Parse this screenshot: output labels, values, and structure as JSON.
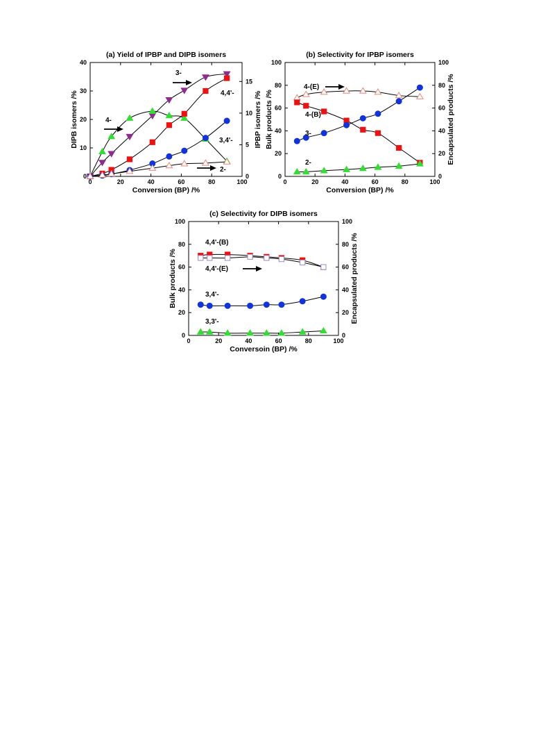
{
  "chart_data": [
    {
      "id": "a",
      "type": "scatter",
      "title": "(a) Yield of IPBP and DIPB isomers",
      "xlabel": "Conversion (BP) /%",
      "ylabel_left": "DIPB isomers /%",
      "ylabel_right": "IPBP isomers /%",
      "xlim": [
        0,
        100
      ],
      "ylim_left": [
        0,
        40
      ],
      "ylim_right": [
        0,
        18
      ],
      "xticks": [
        "0",
        "20",
        "40",
        "60",
        "80",
        "100"
      ],
      "yticks_left": [
        "0",
        "10",
        "20",
        "30",
        "40"
      ],
      "yticks_right": [
        "0",
        "5",
        "10",
        "15"
      ],
      "series": [
        {
          "name": "3-",
          "axis": "right",
          "color": "#8e2b8e",
          "marker": "tri-down",
          "x": [
            0,
            8,
            14,
            26,
            41,
            52,
            62,
            76,
            90
          ],
          "y": [
            0,
            2.2,
            3.6,
            6.3,
            9.6,
            12.1,
            13.6,
            15.7,
            16.2
          ]
        },
        {
          "name": "4-",
          "axis": "right",
          "color": "#33dd33",
          "marker": "tri-up",
          "x": [
            0,
            8,
            14,
            26,
            41,
            52,
            62,
            76,
            90
          ],
          "y": [
            0,
            3.9,
            6.3,
            9.2,
            10.3,
            9.6,
            9.2,
            5.9,
            2.4
          ]
        },
        {
          "name": "4,4'-",
          "axis": "left",
          "color": "#ee1111",
          "marker": "square",
          "x": [
            0,
            8,
            14,
            26,
            41,
            52,
            62,
            76,
            90
          ],
          "y": [
            0,
            1,
            2.3,
            6,
            12,
            18,
            22,
            30,
            34.5
          ]
        },
        {
          "name": "3,4'-",
          "axis": "left",
          "color": "#1133dd",
          "marker": "circle",
          "x": [
            0,
            8,
            14,
            26,
            41,
            52,
            62,
            76,
            90
          ],
          "y": [
            0,
            0.3,
            0.8,
            2.2,
            4.5,
            7,
            9,
            13.5,
            19.5
          ]
        },
        {
          "name": "2-",
          "axis": "right",
          "color": "#e88a7a",
          "marker": "tri-up-open",
          "x": [
            0,
            8,
            14,
            26,
            41,
            52,
            62,
            76,
            90
          ],
          "y": [
            0,
            0.2,
            0.4,
            0.8,
            1.3,
            1.7,
            2,
            2.1,
            2.3
          ]
        }
      ],
      "annotations": [
        {
          "text": "4-",
          "arrow": "right"
        },
        {
          "text": "3-",
          "arrow": "right"
        },
        {
          "text": "4,4'-",
          "arrow": null
        },
        {
          "text": "3,4'-",
          "arrow": null
        },
        {
          "text": "2-",
          "arrow": "left"
        }
      ]
    },
    {
      "id": "b",
      "type": "scatter",
      "title": "(b) Selectivity for IPBP isomers",
      "xlabel": "Conversion (BP) /%",
      "ylabel_left": "Bulk products /%",
      "ylabel_right": "Encapsulated products /%",
      "xlim": [
        0,
        100
      ],
      "ylim_left": [
        0,
        100
      ],
      "ylim_right": [
        0,
        100
      ],
      "xticks": [
        "0",
        "20",
        "40",
        "60",
        "80",
        "100"
      ],
      "yticks_left": [
        "0",
        "20",
        "40",
        "60",
        "80",
        "100"
      ],
      "yticks_right": [
        "0",
        "20",
        "40",
        "60",
        "80",
        "100"
      ],
      "series": [
        {
          "name": "4-(E)",
          "axis": "right",
          "color": "#e88a7a",
          "marker": "tri-up-open",
          "x": [
            8,
            14,
            26,
            41,
            52,
            62,
            76,
            90
          ],
          "y": [
            69,
            72,
            74,
            75,
            75,
            74,
            71,
            70
          ]
        },
        {
          "name": "4-(B)",
          "axis": "left",
          "color": "#ee1111",
          "marker": "square",
          "x": [
            8,
            14,
            26,
            41,
            52,
            62,
            76,
            90
          ],
          "y": [
            65,
            62,
            57,
            49,
            41,
            38,
            25,
            12
          ]
        },
        {
          "name": "3-",
          "axis": "left",
          "color": "#1133dd",
          "marker": "circle",
          "x": [
            8,
            14,
            26,
            41,
            52,
            62,
            76,
            90
          ],
          "y": [
            31,
            34,
            38,
            45,
            51,
            55,
            66,
            78
          ]
        },
        {
          "name": "2-",
          "axis": "left",
          "color": "#33dd33",
          "marker": "tri-up",
          "x": [
            8,
            14,
            26,
            41,
            52,
            62,
            76,
            90
          ],
          "y": [
            4,
            4,
            5,
            6,
            7,
            8,
            9,
            11
          ]
        }
      ],
      "annotations": [
        {
          "text": "4-(E)",
          "arrow": "right"
        },
        {
          "text": "4-(B)",
          "arrow": null
        },
        {
          "text": "3-",
          "arrow": null
        },
        {
          "text": "2-",
          "arrow": null
        }
      ]
    },
    {
      "id": "c",
      "type": "scatter",
      "title": "(c) Selectivity for DIPB isomers",
      "xlabel": "Conversoin (BP) /%",
      "ylabel_left": "Bulk products /%",
      "ylabel_right": "Encapsulated products /%",
      "xlim": [
        0,
        100
      ],
      "ylim_left": [
        0,
        100
      ],
      "ylim_right": [
        0,
        100
      ],
      "xticks": [
        "0",
        "20",
        "40",
        "60",
        "80",
        "100"
      ],
      "yticks_left": [
        "0",
        "20",
        "40",
        "60",
        "80",
        "100"
      ],
      "yticks_right": [
        "0",
        "20",
        "40",
        "60",
        "80",
        "100"
      ],
      "series": [
        {
          "name": "4,4'-(B)",
          "axis": "left",
          "color": "#ee1111",
          "marker": "square",
          "x": [
            8,
            14,
            26,
            41,
            52,
            62,
            76,
            90
          ],
          "y": [
            70,
            71,
            71,
            70,
            69,
            68,
            66,
            60
          ]
        },
        {
          "name": "4,4'-(E)",
          "axis": "right",
          "color": "#9a8cc8",
          "marker": "square-open",
          "x": [
            8,
            14,
            26,
            41,
            52,
            62,
            76,
            90
          ],
          "y": [
            68,
            68,
            68,
            69,
            68,
            67,
            64,
            60
          ]
        },
        {
          "name": "3,4'-",
          "axis": "left",
          "color": "#1133dd",
          "marker": "circle",
          "x": [
            8,
            14,
            26,
            41,
            52,
            62,
            76,
            90
          ],
          "y": [
            27,
            26,
            26,
            26,
            27,
            27,
            30,
            34
          ]
        },
        {
          "name": "3,3'-",
          "axis": "left",
          "color": "#33dd33",
          "marker": "tri-up",
          "x": [
            8,
            14,
            26,
            41,
            52,
            62,
            76,
            90
          ],
          "y": [
            3,
            3,
            2,
            2,
            2,
            2,
            3,
            4
          ]
        }
      ],
      "annotations": [
        {
          "text": "4,4'-(B)",
          "arrow": null
        },
        {
          "text": "4,4'-(E)",
          "arrow": "right"
        },
        {
          "text": "3,4'-",
          "arrow": null
        },
        {
          "text": "3,3'-",
          "arrow": null
        }
      ]
    }
  ]
}
